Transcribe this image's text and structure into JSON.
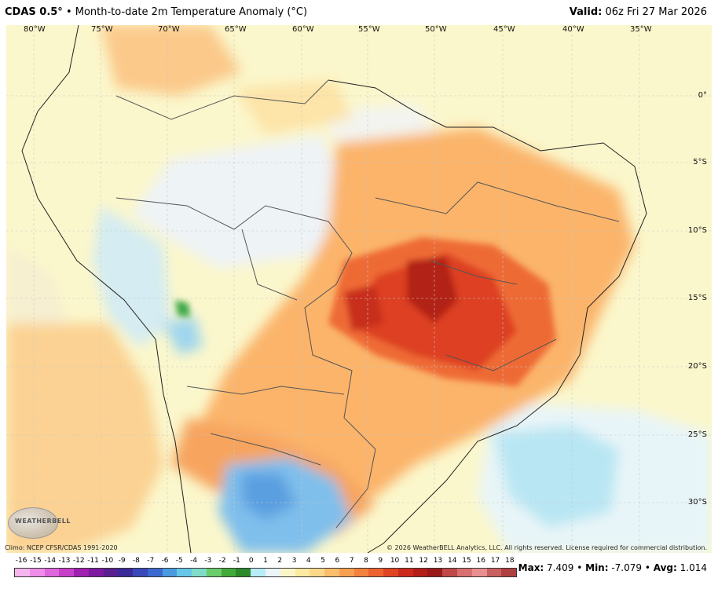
{
  "header": {
    "product": "CDAS 0.5°",
    "separator": " • ",
    "field": "Month-to-date 2m Temperature Anomaly (°C)",
    "valid_label": "Valid:",
    "valid_time": " 06z Fri 27 Mar 2026"
  },
  "longitude_labels": [
    "80°W",
    "75°W",
    "70°W",
    "65°W",
    "60°W",
    "55°W",
    "50°W",
    "45°W",
    "40°W",
    "35°W"
  ],
  "latitude_labels": [
    "0°",
    "5°S",
    "10°S",
    "15°S",
    "20°S",
    "25°S",
    "30°S"
  ],
  "footer": {
    "climo": "Climo: NCEP CFSR/CDAS 1991-2020",
    "copyright": "© 2026 WeatherBELL Analytics, LLC. All rights reserved. License required for commercial distribution.",
    "logo_text": "WEATHERBELL"
  },
  "colorbar": {
    "labels": [
      "-16",
      "-15",
      "-14",
      "-13",
      "-12",
      "-11",
      "-10",
      "-9",
      "-8",
      "-7",
      "-6",
      "-5",
      "-4",
      "-3",
      "-2",
      "-1",
      "0",
      "1",
      "2",
      "3",
      "4",
      "5",
      "6",
      "7",
      "8",
      "9",
      "10",
      "11",
      "12",
      "13",
      "14",
      "15",
      "16",
      "17",
      "18"
    ],
    "colors": [
      "#f5b6f0",
      "#ee8ee8",
      "#e066dc",
      "#c840c8",
      "#a020b0",
      "#7d1aa0",
      "#5a2090",
      "#3a2a9a",
      "#3a48b8",
      "#3b6bd0",
      "#4a9adf",
      "#67c7e8",
      "#7fdcc8",
      "#6acc6a",
      "#42aa3a",
      "#2c8a2a",
      "#b8ecf6",
      "#eaf5f8",
      "#fbf6c8",
      "#fdeaa0",
      "#fcd88a",
      "#fbbe6c",
      "#f8a050",
      "#f38140",
      "#ec6230",
      "#e04424",
      "#cc2a1c",
      "#b41e1a",
      "#9a1a1a",
      "#c04848",
      "#d87070",
      "#e89090",
      "#c86060",
      "#b04040"
    ]
  },
  "stats": {
    "max_label": "Max:",
    "max_value": " 7.409",
    "sep1": " • ",
    "min_label": "Min:",
    "min_value": " -7.079",
    "sep2": " • ",
    "avg_label": "Avg:",
    "avg_value": " 1.014"
  }
}
